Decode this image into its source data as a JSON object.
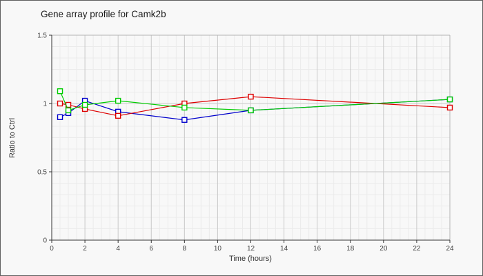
{
  "figure": {
    "title": "Gene array profile for Camk2b",
    "background": "#f8f8f8",
    "border_color": "#5f5f5f"
  },
  "chart_data": {
    "type": "line",
    "title": "Gene array profile for Camk2b",
    "xlabel": "Time (hours)",
    "ylabel": "Ratio to Ctrl",
    "xlim": [
      0,
      24
    ],
    "ylim": [
      0,
      1.5
    ],
    "x_ticks": [
      0,
      2,
      4,
      6,
      8,
      10,
      12,
      14,
      16,
      18,
      20,
      22,
      24
    ],
    "y_ticks": [
      0,
      0.5,
      1,
      1.5
    ],
    "y_tick_labels": [
      "0",
      "0.5",
      "1",
      "1.5"
    ],
    "x_minor_step": 0.5,
    "y_minor_divisions": 6,
    "grid": true,
    "legend_position": "none",
    "marker": "open-square",
    "x": [
      0.5,
      1,
      2,
      4,
      8,
      12,
      24
    ],
    "series": [
      {
        "name": "blue",
        "color": "#0000cc",
        "values": [
          0.9,
          0.93,
          1.02,
          0.94,
          0.88,
          0.95,
          1.03
        ]
      },
      {
        "name": "red",
        "color": "#dd0000",
        "values": [
          1.0,
          0.99,
          0.96,
          0.91,
          1.0,
          1.05,
          0.97
        ]
      },
      {
        "name": "green",
        "color": "#00cc00",
        "values": [
          1.09,
          0.95,
          0.99,
          1.02,
          0.97,
          0.95,
          1.03
        ]
      }
    ]
  },
  "style": {
    "grid_major": "#c8c8c8",
    "grid_minor": "#ebebeb",
    "axis_color": "#333333",
    "plot_border": "#b3b3b3",
    "tick_label_color": "#444444",
    "marker_fill": "#fcfcfc"
  }
}
